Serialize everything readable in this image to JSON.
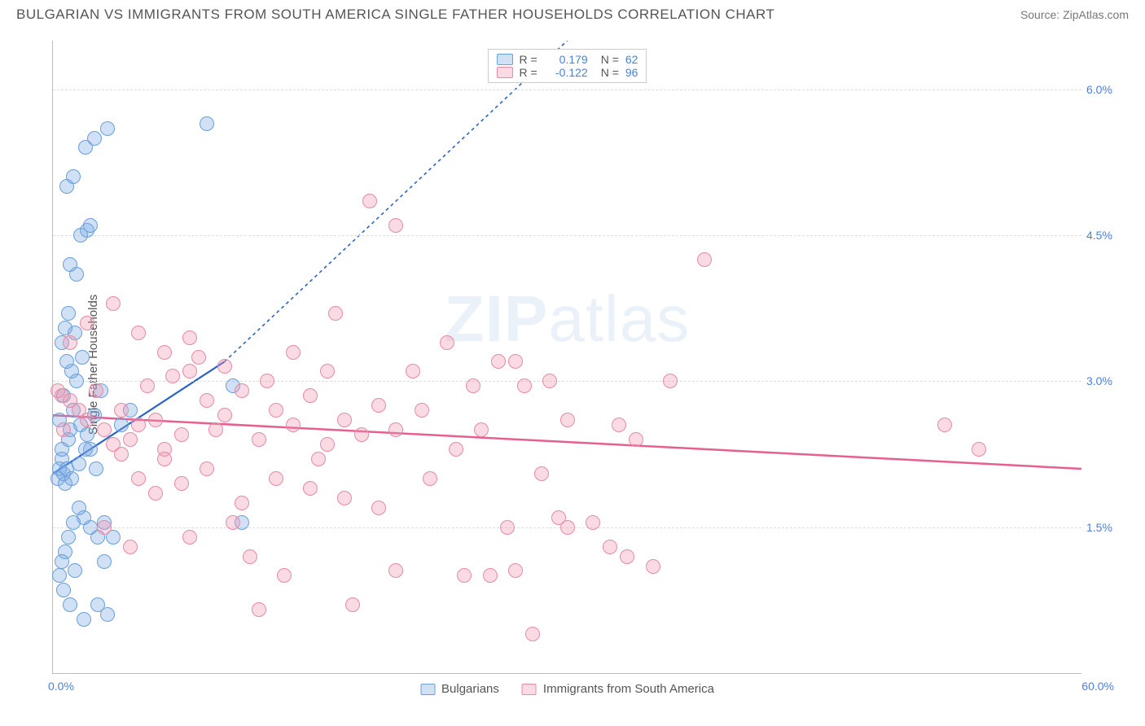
{
  "title": "BULGARIAN VS IMMIGRANTS FROM SOUTH AMERICA SINGLE FATHER HOUSEHOLDS CORRELATION CHART",
  "source": "Source: ZipAtlas.com",
  "watermark": "ZIPatlas",
  "ylabel": "Single Father Households",
  "chart": {
    "type": "scatter",
    "xlim": [
      0,
      60
    ],
    "ylim": [
      0,
      6.5
    ],
    "x_tick_left": "0.0%",
    "x_tick_right": "60.0%",
    "y_ticks": [
      {
        "v": 1.5,
        "label": "1.5%"
      },
      {
        "v": 3.0,
        "label": "3.0%"
      },
      {
        "v": 4.5,
        "label": "4.5%"
      },
      {
        "v": 6.0,
        "label": "6.0%"
      }
    ],
    "grid_color": "#dddddd",
    "axis_color": "#bbbbbb",
    "background_color": "#ffffff",
    "tick_label_color": "#4a7fe0",
    "point_radius": 9,
    "series": [
      {
        "name": "Bulgarians",
        "color_fill": "rgba(120,170,230,0.35)",
        "color_stroke": "#6a9fd8",
        "R": "0.179",
        "N": "62",
        "trend": {
          "x1": 0,
          "y1": 2.05,
          "x2": 10,
          "y2": 3.2,
          "dash_to_x": 30,
          "dash_to_y": 6.5,
          "color": "#2c62c7",
          "width": 2.2
        },
        "points": [
          [
            0.3,
            2.0
          ],
          [
            0.4,
            2.1
          ],
          [
            0.5,
            2.2
          ],
          [
            0.6,
            2.05
          ],
          [
            0.7,
            1.95
          ],
          [
            0.8,
            2.1
          ],
          [
            0.5,
            2.3
          ],
          [
            0.9,
            2.4
          ],
          [
            1.0,
            2.5
          ],
          [
            0.4,
            2.6
          ],
          [
            1.2,
            2.7
          ],
          [
            0.6,
            2.85
          ],
          [
            1.4,
            3.0
          ],
          [
            1.1,
            3.1
          ],
          [
            0.8,
            3.2
          ],
          [
            1.6,
            2.55
          ],
          [
            2.0,
            2.45
          ],
          [
            2.2,
            2.3
          ],
          [
            2.4,
            2.65
          ],
          [
            2.8,
            2.9
          ],
          [
            3.0,
            1.55
          ],
          [
            2.6,
            1.4
          ],
          [
            2.2,
            1.5
          ],
          [
            1.8,
            1.6
          ],
          [
            1.5,
            1.7
          ],
          [
            1.2,
            1.55
          ],
          [
            0.9,
            1.4
          ],
          [
            0.7,
            1.25
          ],
          [
            0.5,
            1.15
          ],
          [
            0.4,
            1.0
          ],
          [
            0.6,
            0.85
          ],
          [
            1.0,
            0.7
          ],
          [
            1.8,
            0.55
          ],
          [
            2.6,
            0.7
          ],
          [
            3.2,
            0.6
          ],
          [
            1.3,
            1.05
          ],
          [
            1.1,
            2.0
          ],
          [
            1.5,
            2.15
          ],
          [
            1.9,
            2.3
          ],
          [
            2.5,
            2.1
          ],
          [
            0.5,
            3.4
          ],
          [
            0.7,
            3.55
          ],
          [
            0.9,
            3.7
          ],
          [
            1.3,
            3.5
          ],
          [
            1.4,
            4.1
          ],
          [
            1.0,
            4.2
          ],
          [
            1.6,
            4.5
          ],
          [
            2.0,
            4.55
          ],
          [
            2.2,
            4.6
          ],
          [
            0.8,
            5.0
          ],
          [
            1.2,
            5.1
          ],
          [
            1.9,
            5.4
          ],
          [
            2.4,
            5.5
          ],
          [
            3.2,
            5.6
          ],
          [
            9.0,
            5.65
          ],
          [
            3.0,
            1.15
          ],
          [
            3.5,
            1.4
          ],
          [
            4.0,
            2.55
          ],
          [
            4.5,
            2.7
          ],
          [
            11.0,
            1.55
          ],
          [
            10.5,
            2.95
          ],
          [
            1.7,
            3.25
          ]
        ]
      },
      {
        "name": "Immigants from South America",
        "display_label": "Immigrants from South America",
        "color_fill": "rgba(240,150,175,0.35)",
        "color_stroke": "#e58ba6",
        "R": "-0.122",
        "N": "96",
        "trend": {
          "x1": 0,
          "y1": 2.65,
          "x2": 60,
          "y2": 2.1,
          "color": "#e75f8f",
          "width": 2.5
        },
        "points": [
          [
            0.5,
            2.85
          ],
          [
            1.0,
            2.8
          ],
          [
            1.5,
            2.7
          ],
          [
            2.0,
            2.6
          ],
          [
            2.5,
            2.9
          ],
          [
            3.0,
            2.5
          ],
          [
            3.5,
            2.35
          ],
          [
            4.0,
            2.7
          ],
          [
            4.5,
            2.4
          ],
          [
            5.0,
            2.55
          ],
          [
            5.5,
            2.95
          ],
          [
            6.0,
            2.6
          ],
          [
            6.5,
            2.3
          ],
          [
            7.0,
            3.05
          ],
          [
            7.5,
            2.45
          ],
          [
            8.0,
            3.1
          ],
          [
            8.5,
            3.25
          ],
          [
            9.0,
            2.8
          ],
          [
            9.5,
            2.5
          ],
          [
            10.0,
            2.65
          ],
          [
            11.0,
            2.9
          ],
          [
            12.0,
            2.4
          ],
          [
            13.0,
            2.7
          ],
          [
            14.0,
            2.55
          ],
          [
            15.0,
            2.85
          ],
          [
            16.0,
            2.35
          ],
          [
            17.0,
            2.6
          ],
          [
            18.0,
            2.45
          ],
          [
            19.0,
            2.75
          ],
          [
            20.0,
            2.5
          ],
          [
            5.0,
            2.0
          ],
          [
            6.0,
            1.85
          ],
          [
            7.5,
            1.95
          ],
          [
            9.0,
            2.1
          ],
          [
            11.0,
            1.75
          ],
          [
            13.0,
            2.0
          ],
          [
            15.0,
            1.9
          ],
          [
            17.0,
            1.8
          ],
          [
            4.0,
            2.25
          ],
          [
            6.5,
            2.2
          ],
          [
            3.0,
            1.5
          ],
          [
            4.5,
            1.3
          ],
          [
            8.0,
            1.4
          ],
          [
            10.5,
            1.55
          ],
          [
            24.0,
            1.0
          ],
          [
            25.5,
            1.0
          ],
          [
            27.0,
            1.05
          ],
          [
            28.0,
            0.4
          ],
          [
            17.5,
            0.7
          ],
          [
            12.0,
            0.65
          ],
          [
            18.5,
            4.85
          ],
          [
            20.0,
            4.6
          ],
          [
            16.5,
            3.7
          ],
          [
            23.0,
            3.4
          ],
          [
            26.0,
            3.2
          ],
          [
            21.0,
            3.1
          ],
          [
            24.5,
            2.95
          ],
          [
            27.5,
            2.95
          ],
          [
            29.0,
            3.0
          ],
          [
            30.0,
            2.6
          ],
          [
            33.0,
            2.55
          ],
          [
            34.0,
            2.4
          ],
          [
            36.0,
            3.0
          ],
          [
            38.0,
            4.25
          ],
          [
            30.0,
            1.5
          ],
          [
            31.5,
            1.55
          ],
          [
            32.5,
            1.3
          ],
          [
            33.5,
            1.2
          ],
          [
            52.0,
            2.55
          ],
          [
            54.0,
            2.3
          ],
          [
            1.0,
            3.4
          ],
          [
            2.0,
            3.6
          ],
          [
            3.5,
            3.8
          ],
          [
            5.0,
            3.5
          ],
          [
            6.5,
            3.3
          ],
          [
            8.0,
            3.45
          ],
          [
            10.0,
            3.15
          ],
          [
            12.5,
            3.0
          ],
          [
            14.0,
            3.3
          ],
          [
            16.0,
            3.1
          ],
          [
            11.5,
            1.2
          ],
          [
            13.5,
            1.0
          ],
          [
            20.0,
            1.05
          ],
          [
            22.0,
            2.0
          ],
          [
            25.0,
            2.5
          ],
          [
            27.0,
            3.2
          ],
          [
            29.5,
            1.6
          ],
          [
            21.5,
            2.7
          ],
          [
            23.5,
            2.3
          ],
          [
            28.5,
            2.05
          ],
          [
            19.0,
            1.7
          ],
          [
            15.5,
            2.2
          ],
          [
            26.5,
            1.5
          ],
          [
            35.0,
            1.1
          ],
          [
            0.3,
            2.9
          ],
          [
            0.6,
            2.5
          ]
        ]
      }
    ]
  },
  "legend_top_labels": {
    "R": "R =",
    "N": "N ="
  },
  "legend_bottom": [
    "Bulgarians",
    "Immigrants from South America"
  ]
}
